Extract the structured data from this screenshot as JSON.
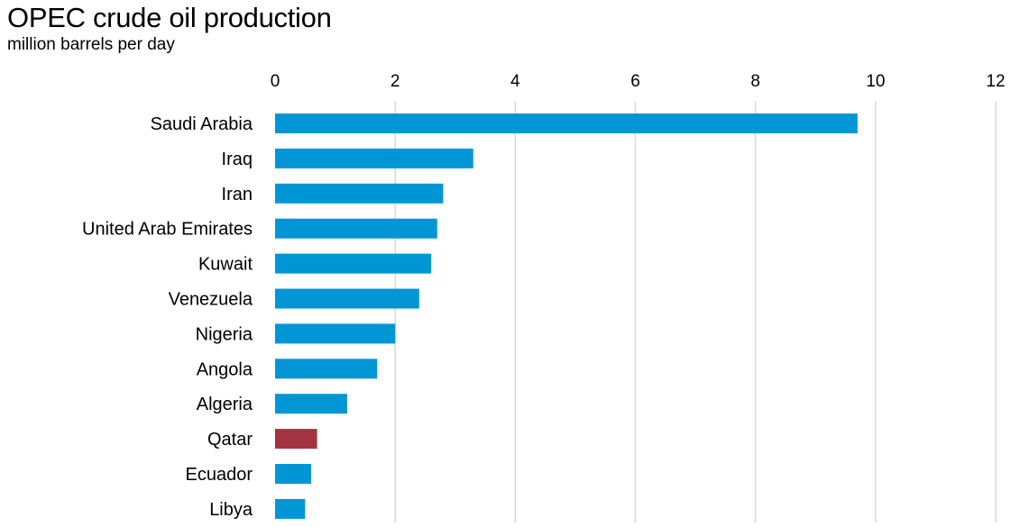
{
  "title": "OPEC crude oil production",
  "subtitle": "million barrels per day",
  "colors": {
    "default_bar": "#0096d6",
    "highlight_bar": "#a33340",
    "gridline": "#d9d9d9"
  },
  "chart_data": {
    "type": "bar",
    "orientation": "horizontal",
    "title": "OPEC crude oil production",
    "subtitle": "million barrels per day",
    "xlabel": "",
    "ylabel": "",
    "x_axis_position": "top",
    "xlim": [
      0,
      12
    ],
    "xticks": [
      0,
      2,
      4,
      6,
      8,
      10,
      12
    ],
    "grid": true,
    "categories": [
      "Saudi Arabia",
      "Iraq",
      "Iran",
      "United Arab Emirates",
      "Kuwait",
      "Venezuela",
      "Nigeria",
      "Angola",
      "Algeria",
      "Qatar",
      "Ecuador",
      "Libya"
    ],
    "values": [
      9.7,
      3.3,
      2.8,
      2.7,
      2.6,
      2.4,
      2.0,
      1.7,
      1.2,
      0.7,
      0.6,
      0.5
    ],
    "highlighted": [
      "Qatar"
    ]
  }
}
